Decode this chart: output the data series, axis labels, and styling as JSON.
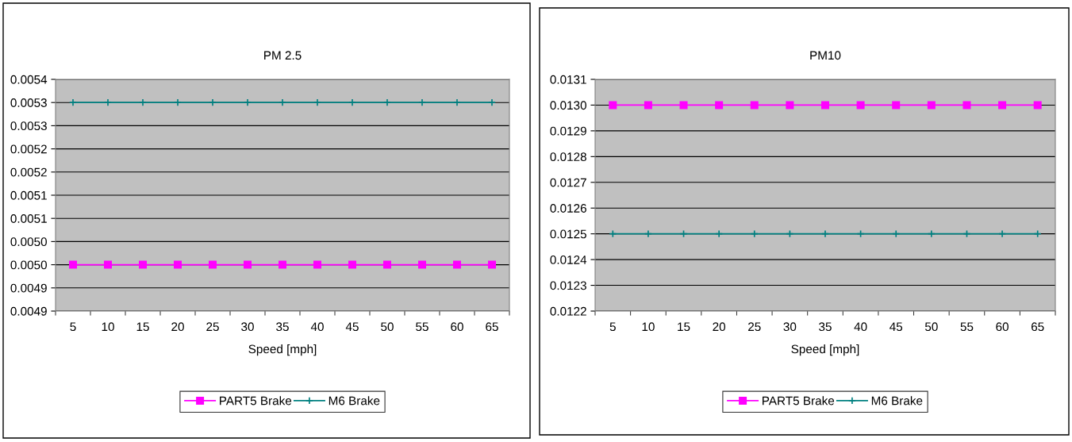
{
  "chart_data": [
    {
      "type": "line",
      "title": "PM 2.5",
      "xlabel": "Speed [mph]",
      "categories": [
        "5",
        "10",
        "15",
        "20",
        "25",
        "30",
        "35",
        "40",
        "45",
        "50",
        "55",
        "60",
        "65"
      ],
      "series": [
        {
          "name": "PART5 Brake",
          "color": "#ff00ff",
          "marker": "square",
          "values": [
            0.00497,
            0.00497,
            0.00497,
            0.00497,
            0.00497,
            0.00497,
            0.00497,
            0.00497,
            0.00497,
            0.00497,
            0.00497,
            0.00497,
            0.00497
          ]
        },
        {
          "name": "M6 Brake",
          "color": "#008080",
          "marker": "cross",
          "values": [
            0.00532,
            0.00532,
            0.00532,
            0.00532,
            0.00532,
            0.00532,
            0.00532,
            0.00532,
            0.00532,
            0.00532,
            0.00532,
            0.00532,
            0.00532
          ]
        }
      ],
      "ylim": [
        0.00487,
        0.00537
      ],
      "yticks": [
        {
          "value": 0.00487,
          "label": "0.0049"
        },
        {
          "value": 0.00492,
          "label": "0.0049"
        },
        {
          "value": 0.00497,
          "label": "0.0050"
        },
        {
          "value": 0.00502,
          "label": "0.0050"
        },
        {
          "value": 0.00507,
          "label": "0.0051"
        },
        {
          "value": 0.00512,
          "label": "0.0051"
        },
        {
          "value": 0.00517,
          "label": "0.0052"
        },
        {
          "value": 0.00522,
          "label": "0.0052"
        },
        {
          "value": 0.00527,
          "label": "0.0053"
        },
        {
          "value": 0.00532,
          "label": "0.0053"
        },
        {
          "value": 0.00537,
          "label": "0.0054"
        }
      ],
      "grid": "y",
      "legend": "bottom",
      "line_style": "solid"
    },
    {
      "type": "line",
      "title": "PM10",
      "xlabel": "Speed [mph]",
      "categories": [
        "5",
        "10",
        "15",
        "20",
        "25",
        "30",
        "35",
        "40",
        "45",
        "50",
        "55",
        "60",
        "65"
      ],
      "series": [
        {
          "name": "PART5 Brake",
          "color": "#ff00ff",
          "marker": "square",
          "values": [
            0.013,
            0.013,
            0.013,
            0.013,
            0.013,
            0.013,
            0.013,
            0.013,
            0.013,
            0.013,
            0.013,
            0.013,
            0.013
          ]
        },
        {
          "name": "M6 Brake",
          "color": "#008080",
          "marker": "cross",
          "values": [
            0.0125,
            0.0125,
            0.0125,
            0.0125,
            0.0125,
            0.0125,
            0.0125,
            0.0125,
            0.0125,
            0.0125,
            0.0125,
            0.0125,
            0.0125
          ]
        }
      ],
      "ylim": [
        0.0122,
        0.0131
      ],
      "yticks": [
        {
          "value": 0.0122,
          "label": "0.0122"
        },
        {
          "value": 0.0123,
          "label": "0.0123"
        },
        {
          "value": 0.0124,
          "label": "0.0124"
        },
        {
          "value": 0.0125,
          "label": "0.0125"
        },
        {
          "value": 0.0126,
          "label": "0.0126"
        },
        {
          "value": 0.0127,
          "label": "0.0127"
        },
        {
          "value": 0.0128,
          "label": "0.0128"
        },
        {
          "value": 0.0129,
          "label": "0.0129"
        },
        {
          "value": 0.013,
          "label": "0.0130"
        },
        {
          "value": 0.0131,
          "label": "0.0131"
        }
      ],
      "grid": "y",
      "legend": "bottom",
      "line_style": "solid"
    }
  ]
}
